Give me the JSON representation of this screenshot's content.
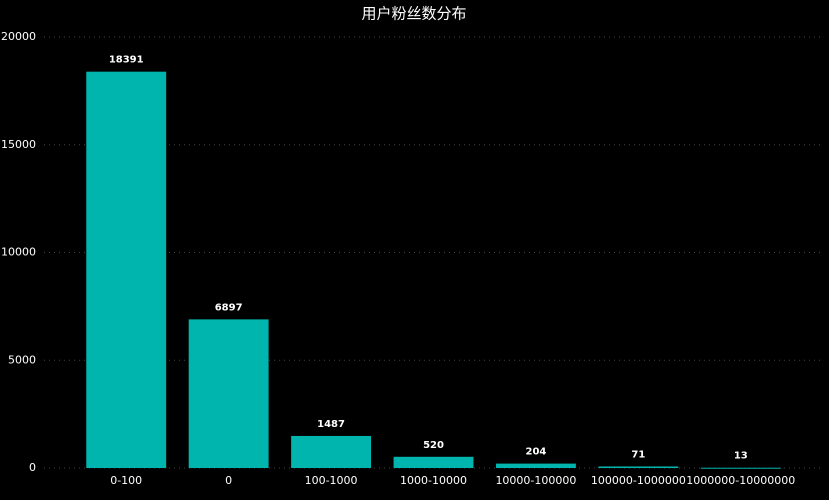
{
  "chart_data": {
    "type": "bar",
    "title": "用户粉丝数分布",
    "categories": [
      "0-100",
      "0",
      "100-1000",
      "1000-10000",
      "10000-100000",
      "100000-1000000",
      "1000000-10000000"
    ],
    "values": [
      18391,
      6897,
      1487,
      520,
      204,
      71,
      13
    ],
    "color": "#00b5ad",
    "ylim": [
      0,
      20000
    ],
    "yticks": [
      0,
      5000,
      10000,
      15000,
      20000
    ],
    "grid": true
  }
}
